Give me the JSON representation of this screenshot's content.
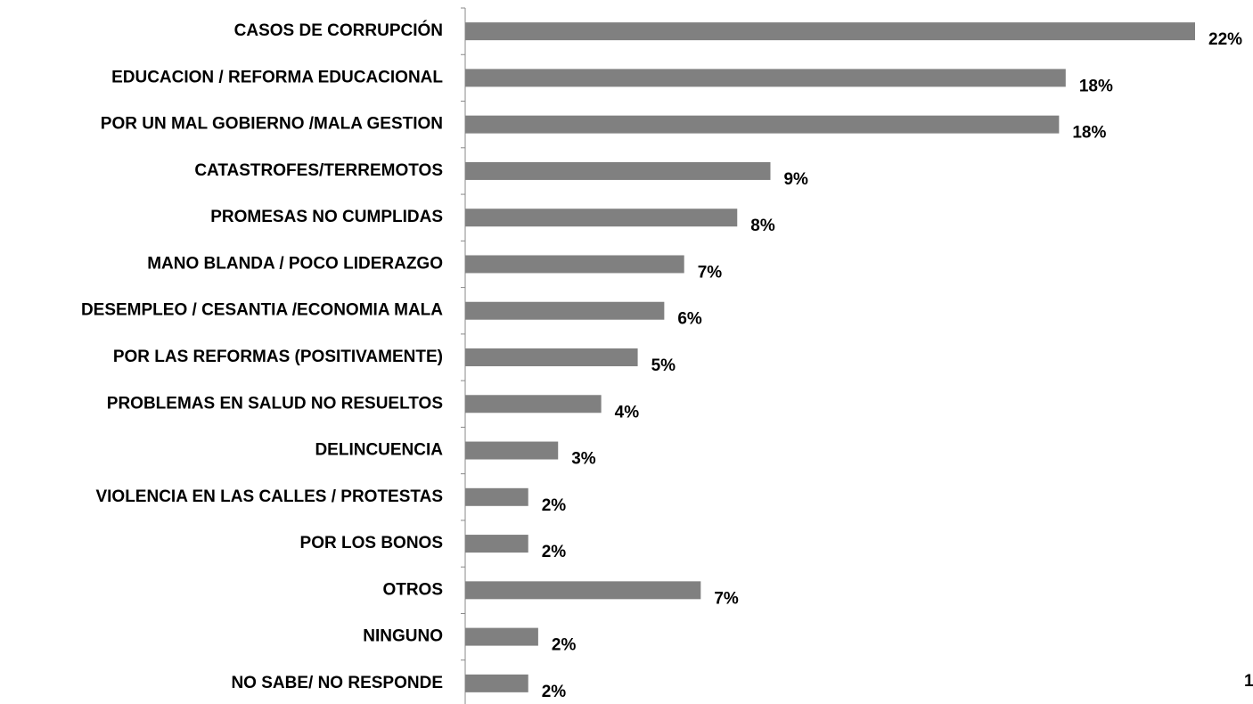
{
  "chart_data": {
    "type": "bar",
    "orientation": "horizontal",
    "categories": [
      "CASOS DE CORRUPCIÓN",
      "EDUCACION / REFORMA EDUCACIONAL",
      "POR UN MAL GOBIERNO /MALA GESTION",
      "CATASTROFES/TERREMOTOS",
      "PROMESAS NO CUMPLIDAS",
      "MANO BLANDA / POCO LIDERAZGO",
      "DESEMPLEO / CESANTIA /ECONOMIA MALA",
      "POR LAS REFORMAS (POSITIVAMENTE)",
      "PROBLEMAS EN SALUD NO RESUELTOS",
      "DELINCUENCIA",
      "VIOLENCIA EN LAS CALLES / PROTESTAS",
      "POR LOS BONOS",
      "OTROS",
      "NINGUNO",
      "NO SABE/ NO RESPONDE"
    ],
    "values": [
      22,
      18.1,
      17.9,
      9.2,
      8.2,
      6.6,
      6.0,
      5.2,
      4.1,
      2.8,
      1.9,
      1.9,
      7.1,
      2.2,
      1.9
    ],
    "value_labels": [
      "22%",
      "18%",
      "18%",
      "9%",
      "8%",
      "7%",
      "6%",
      "5%",
      "4%",
      "3%",
      "2%",
      "2%",
      "7%",
      "2%",
      "2%"
    ],
    "color": "#808080",
    "xlim": [
      0,
      22
    ]
  },
  "page_number": "1"
}
